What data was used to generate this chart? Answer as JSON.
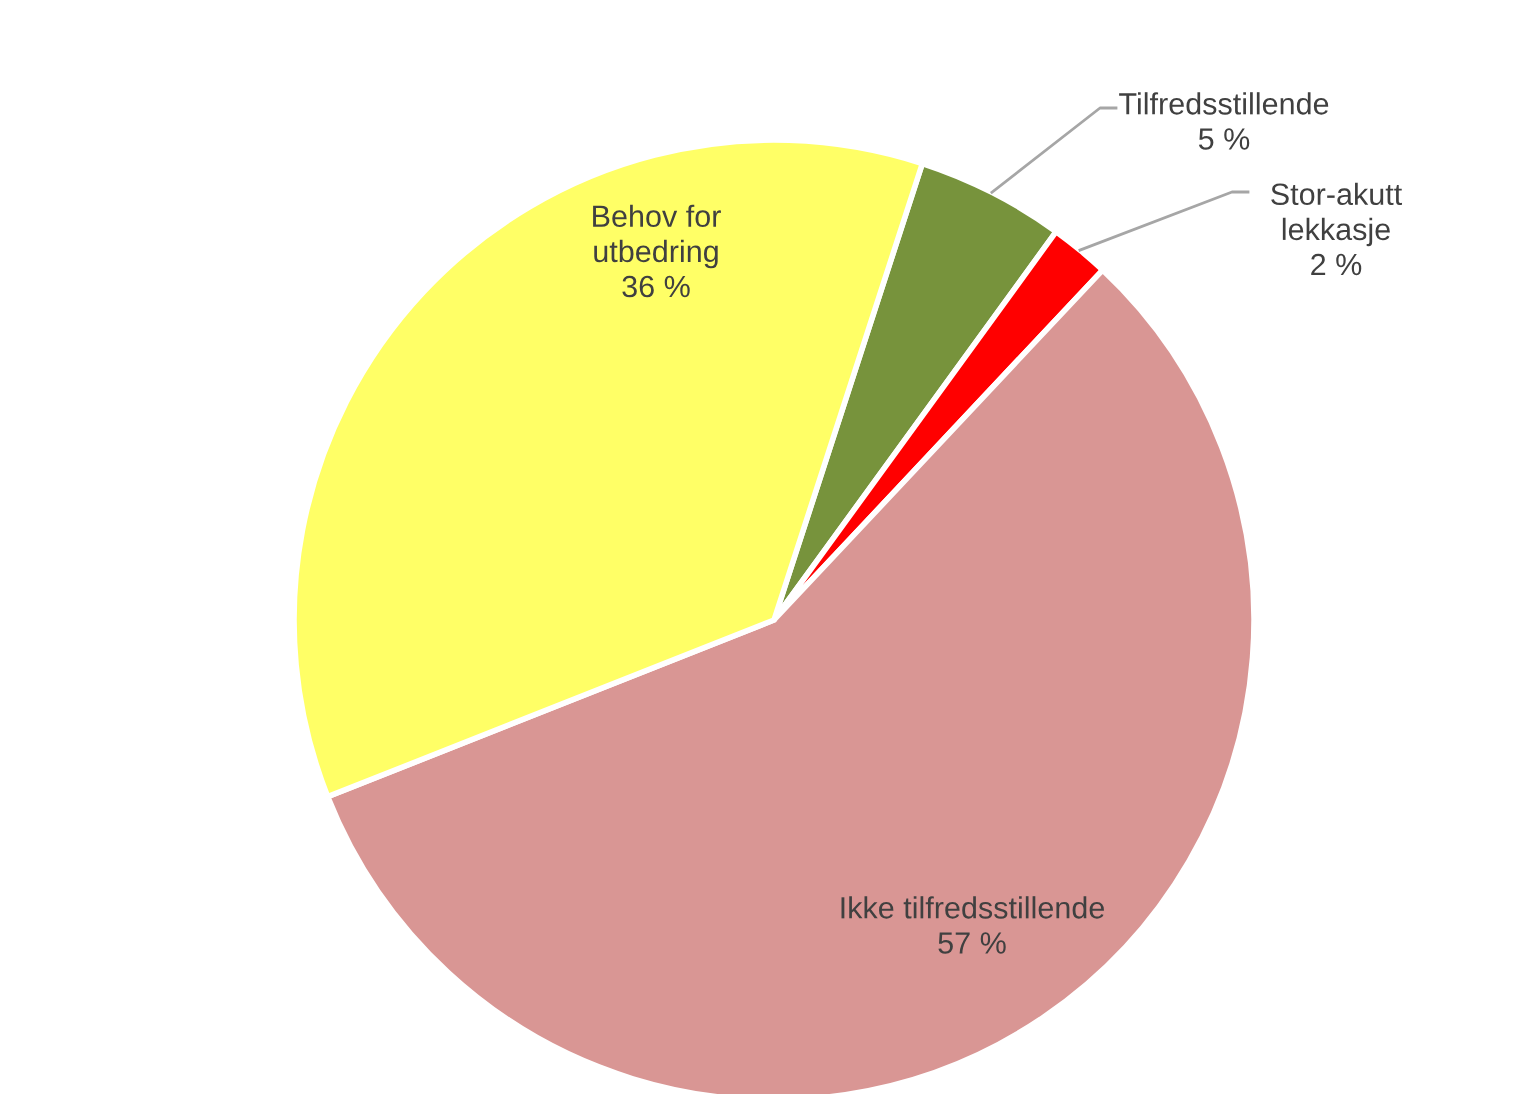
{
  "chart_data": {
    "type": "pie",
    "categories": [
      "Tilfredsstillende",
      "Stor-akutt lekkasje",
      "Ikke tilfredsstillende",
      "Behov for utbedring"
    ],
    "values": [
      5,
      2,
      57,
      36
    ],
    "colors": [
      "#77933c",
      "#ff0000",
      "#d99694",
      "#ffff66"
    ],
    "value_labels": [
      "5 %",
      "2 %",
      "57 %",
      "36 %"
    ]
  }
}
